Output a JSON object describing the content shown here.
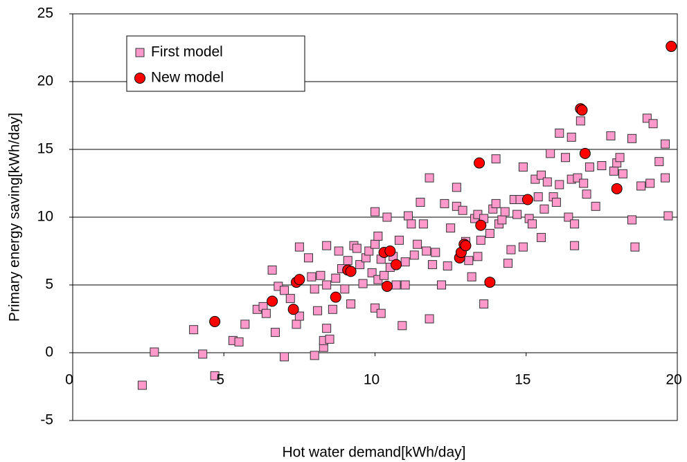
{
  "chart_data": {
    "type": "scatter",
    "x_label": "Hot water demand[kWh/day]",
    "y_label": "Primary energy saving[kWh/day]",
    "xlim": [
      0,
      20
    ],
    "xticks": [
      0,
      5,
      10,
      15,
      20
    ],
    "ylim": [
      -5,
      25
    ],
    "yticks": [
      -5,
      0,
      5,
      10,
      15,
      20,
      25
    ],
    "grid": true,
    "legend": "upper left",
    "series": [
      {
        "name": "First model",
        "color": "#ff99cc",
        "marker": "square",
        "x": [
          2.3,
          2.7,
          4.0,
          4.3,
          4.7,
          5.3,
          5.5,
          5.7,
          6.1,
          6.3,
          6.4,
          6.6,
          6.7,
          6.8,
          7.0,
          7.0,
          7.2,
          7.4,
          7.5,
          7.5,
          7.8,
          7.9,
          8.0,
          8.0,
          8.1,
          8.2,
          8.3,
          8.3,
          8.4,
          8.4,
          8.4,
          8.5,
          8.6,
          8.7,
          8.8,
          8.9,
          9.0,
          9.1,
          9.2,
          9.3,
          9.4,
          9.5,
          9.6,
          9.7,
          9.8,
          9.9,
          10.0,
          10.0,
          10.0,
          10.1,
          10.1,
          10.2,
          10.2,
          10.3,
          10.4,
          10.5,
          10.6,
          10.7,
          10.8,
          10.9,
          11.0,
          11.0,
          11.1,
          11.2,
          11.3,
          11.4,
          11.5,
          11.6,
          11.7,
          11.8,
          11.8,
          11.9,
          12.0,
          12.2,
          12.3,
          12.4,
          12.5,
          12.7,
          12.7,
          12.9,
          13.0,
          13.1,
          13.2,
          13.3,
          13.4,
          13.4,
          13.5,
          13.6,
          13.6,
          13.8,
          13.9,
          14.0,
          14.0,
          14.1,
          14.2,
          14.3,
          14.4,
          14.5,
          14.6,
          14.7,
          14.8,
          14.9,
          14.9,
          15.1,
          15.2,
          15.3,
          15.4,
          15.5,
          15.5,
          15.6,
          15.7,
          15.8,
          15.9,
          16.0,
          16.1,
          16.1,
          16.3,
          16.4,
          16.5,
          16.5,
          16.6,
          16.6,
          16.7,
          16.8,
          16.9,
          17.0,
          17.1,
          17.3,
          17.5,
          17.8,
          17.9,
          18.0,
          18.1,
          18.2,
          18.5,
          18.5,
          18.6,
          18.8,
          19.0,
          19.1,
          19.2,
          19.4,
          19.6,
          19.6,
          19.7
        ],
        "values": [
          -2.4,
          0.05,
          1.7,
          -0.1,
          -1.7,
          0.9,
          0.8,
          2.1,
          3.2,
          3.4,
          2.9,
          6.1,
          1.5,
          4.9,
          -0.3,
          4.6,
          4.0,
          2.1,
          7.8,
          2.7,
          7.0,
          5.6,
          -0.2,
          4.7,
          3.1,
          5.7,
          0.4,
          0.9,
          1.8,
          7.9,
          5.0,
          1.0,
          3.2,
          5.5,
          7.5,
          6.2,
          4.7,
          6.8,
          3.6,
          7.9,
          7.7,
          6.5,
          5.1,
          7.0,
          7.5,
          5.9,
          8.0,
          10.4,
          3.3,
          5.4,
          8.6,
          6.9,
          2.9,
          5.7,
          10.0,
          6.3,
          7.1,
          5.0,
          8.3,
          2.0,
          5.0,
          6.7,
          10.1,
          9.5,
          7.2,
          8.0,
          11.1,
          9.5,
          7.5,
          12.9,
          2.5,
          6.5,
          7.4,
          5.0,
          11.0,
          6.4,
          9.2,
          10.8,
          12.2,
          10.5,
          8.2,
          6.8,
          5.6,
          9.9,
          10.2,
          7.1,
          8.3,
          3.6,
          9.9,
          8.8,
          10.6,
          14.3,
          11.0,
          9.5,
          9.8,
          10.4,
          6.6,
          7.6,
          11.3,
          10.2,
          11.3,
          13.7,
          7.8,
          9.9,
          9.5,
          12.8,
          11.5,
          13.1,
          8.5,
          10.6,
          12.6,
          14.7,
          11.5,
          11.1,
          12.4,
          16.2,
          14.4,
          10.0,
          12.8,
          15.9,
          7.9,
          9.5,
          12.9,
          17.1,
          12.5,
          11.7,
          13.7,
          10.8,
          13.8,
          16.0,
          13.4,
          14.0,
          14.4,
          13.2,
          15.8,
          9.8,
          7.8,
          12.3,
          17.3,
          12.5,
          16.9,
          14.1,
          15.4,
          12.9,
          10.1
        ]
      },
      {
        "name": "New model",
        "color": "#ff0000",
        "marker": "circle",
        "x": [
          4.7,
          6.6,
          7.3,
          7.4,
          7.5,
          8.7,
          9.1,
          9.2,
          10.3,
          10.4,
          10.5,
          10.7,
          12.8,
          12.85,
          12.95,
          13.0,
          13.45,
          13.5,
          13.8,
          15.05,
          16.8,
          16.85,
          16.95,
          18.0,
          19.8
        ],
        "values": [
          2.3,
          3.8,
          3.2,
          5.2,
          5.4,
          4.1,
          6.1,
          6.0,
          7.4,
          4.9,
          7.5,
          6.5,
          7.0,
          7.4,
          8.0,
          7.9,
          14.0,
          9.4,
          5.2,
          11.3,
          18.0,
          17.9,
          14.7,
          12.1,
          22.6
        ]
      }
    ]
  }
}
